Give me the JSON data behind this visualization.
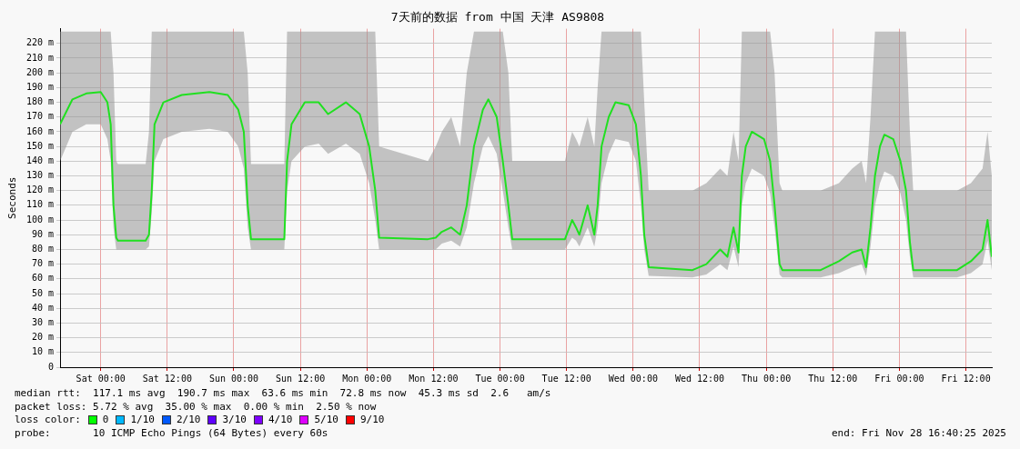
{
  "chart_data": {
    "type": "line",
    "title": "7天前的数据 from 中国 天津 AS9808",
    "ylabel": "Seconds",
    "xlim": [
      "2025-11-21T16:40",
      "2025-11-28T16:40"
    ],
    "xticks": [
      {
        "value": "2025-11-22T00:00",
        "label": "Sat 00:00"
      },
      {
        "value": "2025-11-22T12:00",
        "label": "Sat 12:00"
      },
      {
        "value": "2025-11-23T00:00",
        "label": "Sun 00:00"
      },
      {
        "value": "2025-11-23T12:00",
        "label": "Sun 12:00"
      },
      {
        "value": "2025-11-24T00:00",
        "label": "Mon 00:00"
      },
      {
        "value": "2025-11-24T12:00",
        "label": "Mon 12:00"
      },
      {
        "value": "2025-11-25T00:00",
        "label": "Tue 00:00"
      },
      {
        "value": "2025-11-25T12:00",
        "label": "Tue 12:00"
      },
      {
        "value": "2025-11-26T00:00",
        "label": "Wed 00:00"
      },
      {
        "value": "2025-11-26T12:00",
        "label": "Wed 12:00"
      },
      {
        "value": "2025-11-27T00:00",
        "label": "Thu 00:00"
      },
      {
        "value": "2025-11-27T12:00",
        "label": "Thu 12:00"
      },
      {
        "value": "2025-11-28T00:00",
        "label": "Fri 00:00"
      },
      {
        "value": "2025-11-28T12:00",
        "label": "Fri 12:00"
      }
    ],
    "ylim": [
      0,
      230
    ],
    "yticks": [
      0,
      {
        "value": 10,
        "label": "10 m"
      },
      {
        "value": 20,
        "label": "20 m"
      },
      {
        "value": 30,
        "label": "30 m"
      },
      {
        "value": 40,
        "label": "40 m"
      },
      {
        "value": 50,
        "label": "50 m"
      },
      {
        "value": 60,
        "label": "60 m"
      },
      {
        "value": 70,
        "label": "70 m"
      },
      {
        "value": 80,
        "label": "80 m"
      },
      {
        "value": 90,
        "label": "90 m"
      },
      {
        "value": 100,
        "label": "100 m"
      },
      {
        "value": 110,
        "label": "110 m"
      },
      {
        "value": 120,
        "label": "120 m"
      },
      {
        "value": 130,
        "label": "130 m"
      },
      {
        "value": 140,
        "label": "140 m"
      },
      {
        "value": 150,
        "label": "150 m"
      },
      {
        "value": 160,
        "label": "160 m"
      },
      {
        "value": 170,
        "label": "170 m"
      },
      {
        "value": 180,
        "label": "180 m"
      },
      {
        "value": 190,
        "label": "190 m"
      },
      {
        "value": 200,
        "label": "200 m"
      },
      {
        "value": 210,
        "label": "210 m"
      },
      {
        "value": 220,
        "label": "220 m"
      }
    ],
    "grid": true,
    "legend": false,
    "marker": "none",
    "line_style": "solid",
    "x": [
      "2025-11-21T16:40",
      "2025-11-21T18:54",
      "2025-11-21T21:24",
      "2025-11-22T00:00",
      "2025-11-22T01:12",
      "2025-11-22T01:48",
      "2025-11-22T02:18",
      "2025-11-22T02:48",
      "2025-11-22T03:06",
      "2025-11-22T08:06",
      "2025-11-22T08:42",
      "2025-11-22T09:12",
      "2025-11-22T09:42",
      "2025-11-22T11:18",
      "2025-11-22T14:36",
      "2025-11-22T19:36",
      "2025-11-22T22:54",
      "2025-11-23T00:48",
      "2025-11-23T01:48",
      "2025-11-23T02:30",
      "2025-11-23T03:06",
      "2025-11-23T09:06",
      "2025-11-23T09:36",
      "2025-11-23T10:24",
      "2025-11-23T12:48",
      "2025-11-23T15:18",
      "2025-11-23T17:00",
      "2025-11-23T20:12",
      "2025-11-23T22:42",
      "2025-11-24T00:24",
      "2025-11-24T01:30",
      "2025-11-24T02:12",
      "2025-11-24T11:00",
      "2025-11-24T12:24",
      "2025-11-24T13:30",
      "2025-11-24T15:12",
      "2025-11-24T16:48",
      "2025-11-24T18:00",
      "2025-11-24T19:18",
      "2025-11-24T20:54",
      "2025-11-24T21:54",
      "2025-11-24T23:24",
      "2025-11-25T00:30",
      "2025-11-25T01:30",
      "2025-11-25T02:12",
      "2025-11-25T11:42",
      "2025-11-25T13:00",
      "2025-11-25T13:42",
      "2025-11-25T14:18",
      "2025-11-25T15:48",
      "2025-11-25T17:00",
      "2025-11-25T17:36",
      "2025-11-25T18:18",
      "2025-11-25T19:36",
      "2025-11-25T20:48",
      "2025-11-25T23:12",
      "2025-11-26T00:30",
      "2025-11-26T01:24",
      "2025-11-26T02:00",
      "2025-11-26T02:48",
      "2025-11-26T10:42",
      "2025-11-26T13:12",
      "2025-11-26T15:42",
      "2025-11-26T17:00",
      "2025-11-26T18:06",
      "2025-11-26T19:00",
      "2025-11-26T19:36",
      "2025-11-26T20:18",
      "2025-11-26T21:24",
      "2025-11-26T23:36",
      "2025-11-27T00:42",
      "2025-11-27T01:30",
      "2025-11-27T02:24",
      "2025-11-27T02:54",
      "2025-11-27T09:48",
      "2025-11-27T13:06",
      "2025-11-27T15:30",
      "2025-11-27T17:12",
      "2025-11-27T18:00",
      "2025-11-27T18:48",
      "2025-11-27T19:36",
      "2025-11-27T20:30",
      "2025-11-27T21:18",
      "2025-11-27T22:54",
      "2025-11-28T00:12",
      "2025-11-28T01:12",
      "2025-11-28T01:54",
      "2025-11-28T02:30",
      "2025-11-28T10:24",
      "2025-11-28T12:54",
      "2025-11-28T15:00",
      "2025-11-28T15:54",
      "2025-11-28T16:40"
    ],
    "series": [
      {
        "color": "#20e020",
        "values": [
          165,
          182,
          186,
          187,
          180,
          165,
          110,
          88,
          86,
          86,
          90,
          120,
          165,
          180,
          185,
          187,
          185,
          175,
          160,
          110,
          87,
          87,
          140,
          165,
          180,
          180,
          172,
          180,
          172,
          150,
          120,
          88,
          87,
          88,
          92,
          95,
          90,
          110,
          150,
          175,
          182,
          170,
          140,
          110,
          87,
          87,
          100,
          95,
          90,
          110,
          90,
          110,
          150,
          170,
          180,
          178,
          165,
          130,
          90,
          68,
          66,
          70,
          80,
          75,
          95,
          78,
          130,
          150,
          160,
          155,
          140,
          110,
          70,
          66,
          66,
          72,
          78,
          80,
          68,
          95,
          130,
          150,
          158,
          155,
          140,
          120,
          85,
          66,
          66,
          72,
          80,
          100,
          75
        ],
        "lower": [
          140,
          160,
          165,
          165,
          155,
          140,
          95,
          80,
          80,
          80,
          82,
          105,
          140,
          155,
          160,
          162,
          160,
          150,
          135,
          95,
          80,
          80,
          120,
          140,
          150,
          152,
          145,
          152,
          145,
          125,
          100,
          80,
          80,
          80,
          84,
          86,
          82,
          95,
          125,
          150,
          157,
          145,
          120,
          95,
          80,
          80,
          88,
          86,
          82,
          95,
          82,
          95,
          125,
          145,
          155,
          153,
          140,
          110,
          80,
          62,
          61,
          63,
          70,
          66,
          82,
          68,
          110,
          125,
          135,
          130,
          118,
          95,
          63,
          61,
          61,
          64,
          68,
          70,
          62,
          82,
          110,
          125,
          133,
          130,
          118,
          100,
          75,
          61,
          61,
          64,
          70,
          86,
          66
        ],
        "upper": [
          228,
          228,
          228,
          228,
          228,
          228,
          200,
          140,
          138,
          138,
          160,
          228,
          228,
          228,
          228,
          228,
          228,
          228,
          228,
          200,
          138,
          138,
          228,
          228,
          228,
          228,
          228,
          228,
          228,
          228,
          228,
          150,
          140,
          150,
          160,
          170,
          150,
          200,
          228,
          228,
          228,
          228,
          228,
          200,
          140,
          140,
          160,
          155,
          150,
          170,
          150,
          190,
          228,
          228,
          228,
          228,
          228,
          228,
          180,
          120,
          120,
          125,
          135,
          130,
          160,
          140,
          228,
          228,
          228,
          228,
          228,
          200,
          125,
          120,
          120,
          125,
          135,
          140,
          125,
          170,
          228,
          228,
          228,
          228,
          228,
          228,
          160,
          120,
          120,
          125,
          135,
          160,
          130
        ]
      }
    ],
    "annotations": [
      "median rtt:  117.1 ms avg  190.7 ms max  63.6 ms min  72.8 ms now  45.3 ms sd  2.6   am/s",
      "packet loss: 5.72 % avg  35.00 % max  0.00 % min  2.50 % now",
      "loss color:",
      "0",
      "1/10",
      "2/10",
      "3/10",
      "4/10",
      "5/10",
      "9/10",
      "probe:       10 ICMP Echo Pings (64 Bytes) every 60s",
      "end: Fri Nov 28 16:40:25 2025"
    ]
  }
}
